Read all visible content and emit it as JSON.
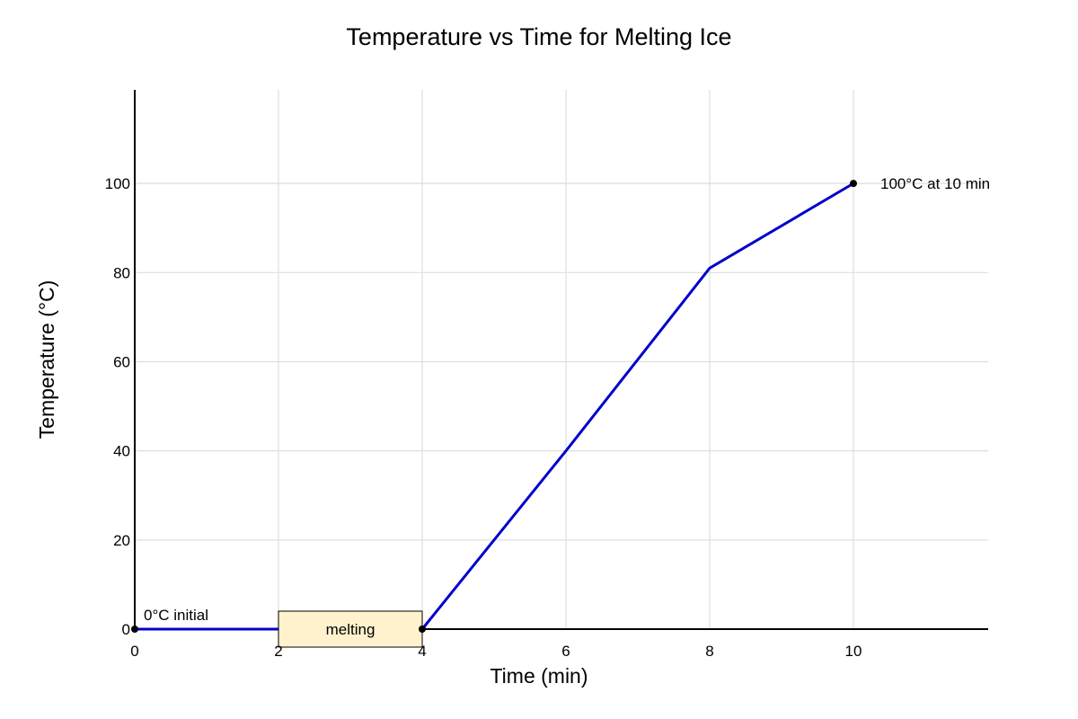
{
  "chart_data": {
    "type": "line",
    "title": "Temperature vs Time for Melting Ice",
    "xlabel": "Time (min)",
    "ylabel": "Temperature (°C)",
    "xlim": [
      0,
      11.875
    ],
    "ylim": [
      0,
      121
    ],
    "x_ticks": [
      0,
      2,
      4,
      6,
      8,
      10
    ],
    "y_ticks": [
      0,
      20,
      40,
      60,
      80,
      100
    ],
    "grid": true,
    "legend": "none",
    "series": [
      {
        "color": "#0000cc",
        "x": [
          0,
          2,
          4,
          6,
          8,
          10
        ],
        "y": [
          0,
          0,
          0,
          40,
          81,
          100
        ]
      }
    ],
    "markers": [
      {
        "x": 0,
        "y": 0
      },
      {
        "x": 4,
        "y": 0
      },
      {
        "x": 10,
        "y": 100
      }
    ],
    "annotations": [
      {
        "text": "0°C initial",
        "x": 0,
        "y": 0,
        "anchor": "above-right"
      },
      {
        "text": "100°C at 10 min",
        "x": 10,
        "y": 100,
        "anchor": "right"
      }
    ],
    "boxed_labels": [
      {
        "text": "melting",
        "x_range": [
          2,
          4
        ],
        "y": 0,
        "fill": "#fff2cc"
      }
    ]
  }
}
